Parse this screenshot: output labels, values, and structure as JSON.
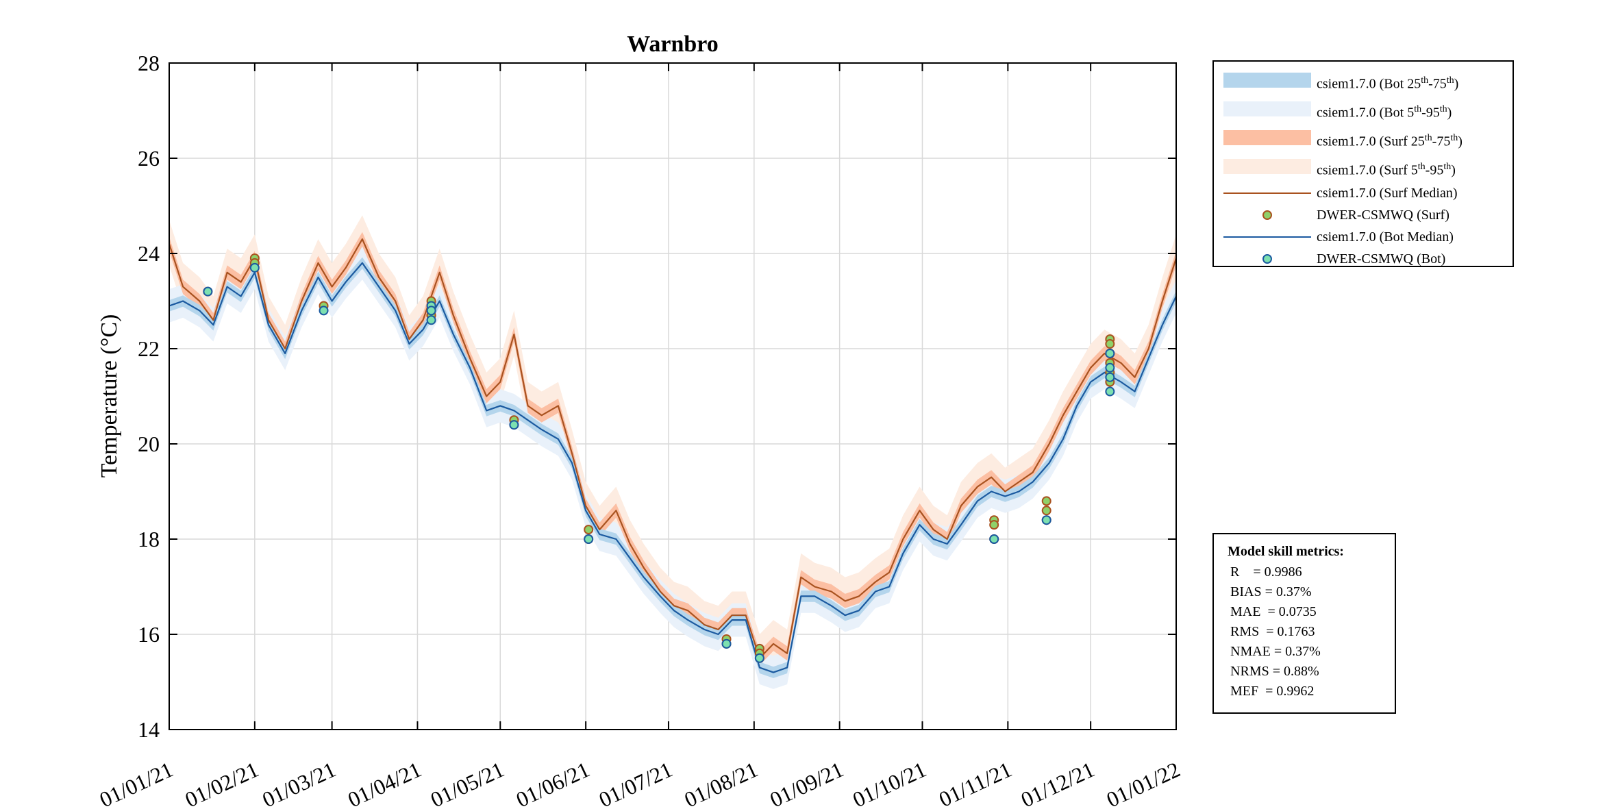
{
  "chart_data": {
    "type": "line",
    "title": "Warnbro",
    "ylabel": "Temperature (°C)",
    "xlabel": "",
    "ylim": [
      14,
      28
    ],
    "xlim": [
      "2021-01-01",
      "2022-01-01"
    ],
    "grid": true,
    "legend_position": "outside-top-right",
    "yticks": [
      14,
      16,
      18,
      20,
      22,
      24,
      26,
      28
    ],
    "xtick_labels": [
      "01/01/21",
      "01/02/21",
      "01/03/21",
      "01/04/21",
      "01/05/21",
      "01/06/21",
      "01/07/21",
      "01/08/21",
      "01/09/21",
      "01/10/21",
      "01/11/21",
      "01/12/21",
      "01/01/22"
    ],
    "legend": [
      {
        "label": "csiem1.7.0 (Bot 25th-75th)",
        "kind": "band",
        "color": "#b4d5ec"
      },
      {
        "label": "csiem1.7.0 (Bot 5th-95th)",
        "kind": "band",
        "color": "#e9f1fa"
      },
      {
        "label": "csiem1.7.0 (Surf 25th-75th)",
        "kind": "band",
        "color": "#fcbfa3"
      },
      {
        "label": "csiem1.7.0 (Surf 5th-95th)",
        "kind": "band",
        "color": "#fdece1"
      },
      {
        "label": "csiem1.7.0 (Surf Median)",
        "kind": "line",
        "color": "#a9521f"
      },
      {
        "label": "DWER-CSMWQ (Surf)",
        "kind": "marker",
        "color": "#8fd16a",
        "edge": "#a9521f"
      },
      {
        "label": "csiem1.7.0 (Bot Median)",
        "kind": "line",
        "color": "#1b5aa0"
      },
      {
        "label": "DWER-CSMWQ (Bot)",
        "kind": "marker",
        "color": "#7de0b0",
        "edge": "#1b5aa0"
      }
    ],
    "series": [
      {
        "name": "csiem1.7.0 (Surf Median)",
        "color": "#a9521f",
        "x": [
          "2021-01-01",
          "2021-01-06",
          "2021-01-12",
          "2021-01-17",
          "2021-01-22",
          "2021-01-27",
          "2021-02-01",
          "2021-02-06",
          "2021-02-12",
          "2021-02-18",
          "2021-02-24",
          "2021-03-01",
          "2021-03-06",
          "2021-03-12",
          "2021-03-18",
          "2021-03-24",
          "2021-03-29",
          "2021-04-03",
          "2021-04-09",
          "2021-04-14",
          "2021-04-20",
          "2021-04-26",
          "2021-05-01",
          "2021-05-06",
          "2021-05-11",
          "2021-05-16",
          "2021-05-22",
          "2021-05-27",
          "2021-06-01",
          "2021-06-06",
          "2021-06-12",
          "2021-06-17",
          "2021-06-22",
          "2021-06-28",
          "2021-07-03",
          "2021-07-08",
          "2021-07-14",
          "2021-07-19",
          "2021-07-24",
          "2021-07-29",
          "2021-08-03",
          "2021-08-08",
          "2021-08-13",
          "2021-08-18",
          "2021-08-23",
          "2021-08-29",
          "2021-09-03",
          "2021-09-08",
          "2021-09-14",
          "2021-09-19",
          "2021-09-24",
          "2021-09-30",
          "2021-10-05",
          "2021-10-10",
          "2021-10-15",
          "2021-10-21",
          "2021-10-26",
          "2021-10-31",
          "2021-11-05",
          "2021-11-10",
          "2021-11-16",
          "2021-11-21",
          "2021-11-26",
          "2021-12-01",
          "2021-12-06",
          "2021-12-12",
          "2021-12-17",
          "2021-12-22",
          "2021-12-27",
          "2022-01-01"
        ],
        "y": [
          24.2,
          23.3,
          23.0,
          22.6,
          23.6,
          23.4,
          23.9,
          22.6,
          22.0,
          23.0,
          23.8,
          23.3,
          23.7,
          24.3,
          23.5,
          23.0,
          22.2,
          22.6,
          23.6,
          22.7,
          21.8,
          21.0,
          21.3,
          22.3,
          20.8,
          20.6,
          20.8,
          19.8,
          18.7,
          18.2,
          18.6,
          17.9,
          17.4,
          16.9,
          16.6,
          16.5,
          16.2,
          16.1,
          16.4,
          16.4,
          15.5,
          15.8,
          15.6,
          17.2,
          17.0,
          16.9,
          16.7,
          16.8,
          17.1,
          17.3,
          18.0,
          18.6,
          18.2,
          18.0,
          18.7,
          19.1,
          19.3,
          19.0,
          19.2,
          19.4,
          20.0,
          20.6,
          21.1,
          21.6,
          21.9,
          21.7,
          21.4,
          22.0,
          23.0,
          23.9
        ]
      },
      {
        "name": "csiem1.7.0 (Bot Median)",
        "color": "#1b5aa0",
        "x": [
          "2021-01-01",
          "2021-01-06",
          "2021-01-12",
          "2021-01-17",
          "2021-01-22",
          "2021-01-27",
          "2021-02-01",
          "2021-02-06",
          "2021-02-12",
          "2021-02-18",
          "2021-02-24",
          "2021-03-01",
          "2021-03-06",
          "2021-03-12",
          "2021-03-18",
          "2021-03-24",
          "2021-03-29",
          "2021-04-03",
          "2021-04-09",
          "2021-04-14",
          "2021-04-20",
          "2021-04-26",
          "2021-05-01",
          "2021-05-06",
          "2021-05-11",
          "2021-05-16",
          "2021-05-22",
          "2021-05-27",
          "2021-06-01",
          "2021-06-06",
          "2021-06-12",
          "2021-06-17",
          "2021-06-22",
          "2021-06-28",
          "2021-07-03",
          "2021-07-08",
          "2021-07-14",
          "2021-07-19",
          "2021-07-24",
          "2021-07-29",
          "2021-08-03",
          "2021-08-08",
          "2021-08-13",
          "2021-08-18",
          "2021-08-23",
          "2021-08-29",
          "2021-09-03",
          "2021-09-08",
          "2021-09-14",
          "2021-09-19",
          "2021-09-24",
          "2021-09-30",
          "2021-10-05",
          "2021-10-10",
          "2021-10-15",
          "2021-10-21",
          "2021-10-26",
          "2021-10-31",
          "2021-11-05",
          "2021-11-10",
          "2021-11-16",
          "2021-11-21",
          "2021-11-26",
          "2021-12-01",
          "2021-12-06",
          "2021-12-12",
          "2021-12-17",
          "2021-12-22",
          "2021-12-27",
          "2022-01-01"
        ],
        "y": [
          22.9,
          23.0,
          22.8,
          22.5,
          23.3,
          23.1,
          23.6,
          22.5,
          21.9,
          22.8,
          23.5,
          23.0,
          23.4,
          23.8,
          23.3,
          22.8,
          22.1,
          22.4,
          23.0,
          22.3,
          21.6,
          20.7,
          20.8,
          20.7,
          20.5,
          20.3,
          20.1,
          19.6,
          18.6,
          18.1,
          18.0,
          17.6,
          17.2,
          16.8,
          16.5,
          16.3,
          16.1,
          16.0,
          16.3,
          16.3,
          15.3,
          15.2,
          15.3,
          16.8,
          16.8,
          16.6,
          16.4,
          16.5,
          16.9,
          17.0,
          17.7,
          18.3,
          18.0,
          17.9,
          18.3,
          18.8,
          19.0,
          18.9,
          19.0,
          19.2,
          19.6,
          20.1,
          20.8,
          21.3,
          21.5,
          21.3,
          21.1,
          21.8,
          22.5,
          23.1
        ]
      },
      {
        "name": "DWER-CSMWQ (Surf)",
        "kind": "scatter",
        "x": [
          "2021-01-15",
          "2021-02-01",
          "2021-02-01",
          "2021-02-26",
          "2021-04-06",
          "2021-04-06",
          "2021-04-06",
          "2021-04-06",
          "2021-04-06",
          "2021-05-06",
          "2021-05-06",
          "2021-06-02",
          "2021-06-02",
          "2021-07-22",
          "2021-07-22",
          "2021-08-03",
          "2021-08-03",
          "2021-08-03",
          "2021-10-27",
          "2021-10-27",
          "2021-10-27",
          "2021-11-15",
          "2021-11-15",
          "2021-11-15",
          "2021-12-08",
          "2021-12-08",
          "2021-12-08",
          "2021-12-08",
          "2021-12-08",
          "2021-12-08"
        ],
        "y": [
          23.2,
          23.9,
          23.8,
          22.9,
          23.0,
          22.9,
          22.8,
          22.7,
          22.7,
          20.5,
          20.4,
          18.2,
          18.0,
          15.9,
          15.8,
          15.7,
          15.6,
          15.5,
          18.4,
          18.3,
          18.0,
          18.8,
          18.6,
          18.4,
          22.2,
          22.1,
          21.9,
          21.7,
          21.5,
          21.3
        ]
      },
      {
        "name": "DWER-CSMWQ (Bot)",
        "kind": "scatter",
        "x": [
          "2021-01-15",
          "2021-02-01",
          "2021-02-26",
          "2021-04-06",
          "2021-04-06",
          "2021-04-06",
          "2021-05-06",
          "2021-06-02",
          "2021-07-22",
          "2021-08-03",
          "2021-10-27",
          "2021-11-15",
          "2021-12-08",
          "2021-12-08",
          "2021-12-08",
          "2021-12-08"
        ],
        "y": [
          23.2,
          23.7,
          22.8,
          22.9,
          22.8,
          22.6,
          20.4,
          18.0,
          15.8,
          15.5,
          18.0,
          18.4,
          21.9,
          21.6,
          21.4,
          21.1
        ]
      }
    ]
  },
  "metrics": {
    "title": "Model skill metrics:",
    "rows": [
      "R    = 0.9986",
      "BIAS = 0.37%",
      "MAE  = 0.0735",
      "RMS  = 0.1763",
      "NMAE = 0.37%",
      "NRMS = 0.88%",
      "MEF  = 0.9962"
    ]
  }
}
